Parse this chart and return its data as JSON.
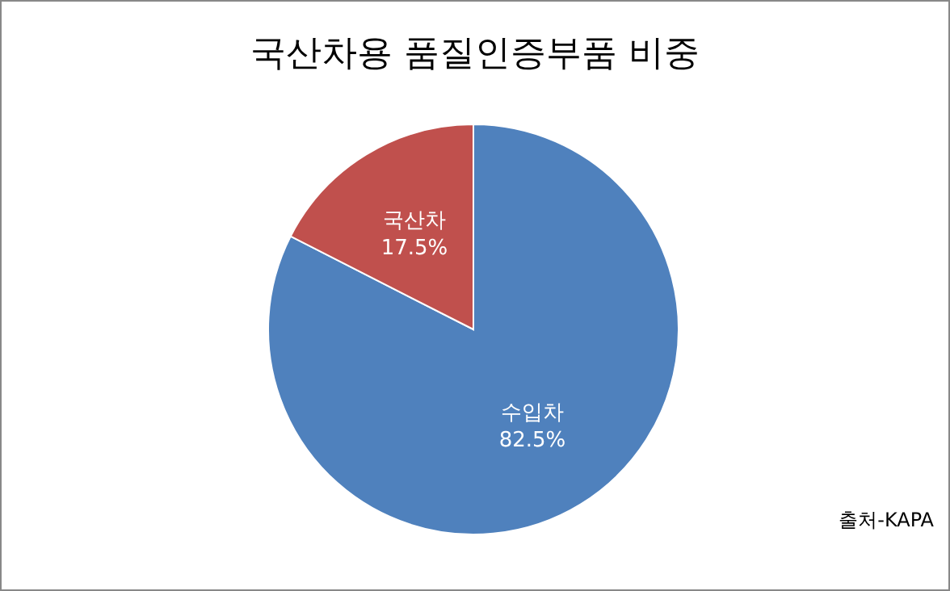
{
  "chart_data": {
    "type": "pie",
    "title": "국산차용 품질인증부품 비중",
    "categories": [
      "수입차",
      "국산차"
    ],
    "values": [
      82.5,
      17.5
    ],
    "value_labels": [
      "82.5%",
      "17.5%"
    ],
    "colors": [
      "#4f81bd",
      "#c0504d"
    ],
    "annotations": [
      "출처-KAPA"
    ]
  }
}
